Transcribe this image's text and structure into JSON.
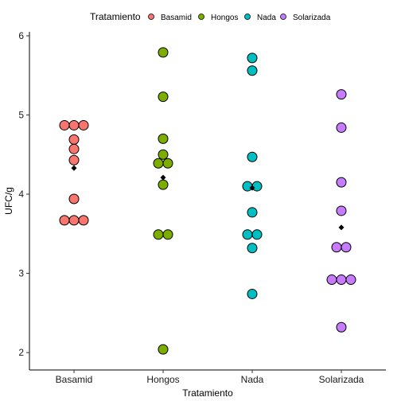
{
  "chart_data": {
    "type": "dotplot",
    "xlabel": "Tratamiento",
    "ylabel": "UFC/g",
    "categories": [
      "Basamid",
      "Hongos",
      "Nada",
      "Solarizada"
    ],
    "colors": {
      "Basamid": "#F8766D",
      "Hongos": "#7CAE00",
      "Nada": "#00BFC4",
      "Solarizada": "#C77CFF"
    },
    "ylim": [
      1.78,
      6.05
    ],
    "yticks": [
      2,
      3,
      4,
      5,
      6
    ],
    "grid": false,
    "legend": {
      "title": "Tratamiento",
      "position": "top",
      "entries": [
        "Basamid",
        "Hongos",
        "Nada",
        "Solarizada"
      ]
    },
    "series": [
      {
        "name": "Basamid",
        "points": [
          {
            "y": 4.87,
            "offset": -1
          },
          {
            "y": 4.87,
            "offset": 0
          },
          {
            "y": 4.87,
            "offset": 1
          },
          {
            "y": 4.69,
            "offset": 0
          },
          {
            "y": 4.57,
            "offset": 0
          },
          {
            "y": 4.43,
            "offset": 0
          },
          {
            "y": 3.94,
            "offset": 0
          },
          {
            "y": 3.67,
            "offset": -1
          },
          {
            "y": 3.67,
            "offset": 0
          },
          {
            "y": 3.67,
            "offset": 1
          }
        ],
        "mean": 4.33
      },
      {
        "name": "Hongos",
        "points": [
          {
            "y": 5.79,
            "offset": 0
          },
          {
            "y": 5.23,
            "offset": 0
          },
          {
            "y": 4.7,
            "offset": 0
          },
          {
            "y": 4.5,
            "offset": 0
          },
          {
            "y": 4.39,
            "offset": -0.5
          },
          {
            "y": 4.39,
            "offset": 0.5
          },
          {
            "y": 4.12,
            "offset": 0
          },
          {
            "y": 3.49,
            "offset": -0.5
          },
          {
            "y": 3.49,
            "offset": 0.5
          },
          {
            "y": 2.04,
            "offset": 0
          }
        ],
        "mean": 4.21
      },
      {
        "name": "Nada",
        "points": [
          {
            "y": 5.72,
            "offset": 0
          },
          {
            "y": 5.56,
            "offset": 0
          },
          {
            "y": 4.47,
            "offset": 0
          },
          {
            "y": 4.1,
            "offset": -0.5
          },
          {
            "y": 4.1,
            "offset": 0.5
          },
          {
            "y": 3.77,
            "offset": 0
          },
          {
            "y": 3.49,
            "offset": -0.5
          },
          {
            "y": 3.49,
            "offset": 0.5
          },
          {
            "y": 3.32,
            "offset": 0
          },
          {
            "y": 2.74,
            "offset": 0
          }
        ],
        "mean": 4.08
      },
      {
        "name": "Solarizada",
        "points": [
          {
            "y": 5.26,
            "offset": 0
          },
          {
            "y": 4.84,
            "offset": 0
          },
          {
            "y": 4.15,
            "offset": 0
          },
          {
            "y": 3.79,
            "offset": 0
          },
          {
            "y": 3.33,
            "offset": -0.5
          },
          {
            "y": 3.33,
            "offset": 0.5
          },
          {
            "y": 2.92,
            "offset": -1
          },
          {
            "y": 2.92,
            "offset": 0
          },
          {
            "y": 2.92,
            "offset": 1
          },
          {
            "y": 2.32,
            "offset": 0
          }
        ],
        "mean": 3.58
      }
    ]
  }
}
